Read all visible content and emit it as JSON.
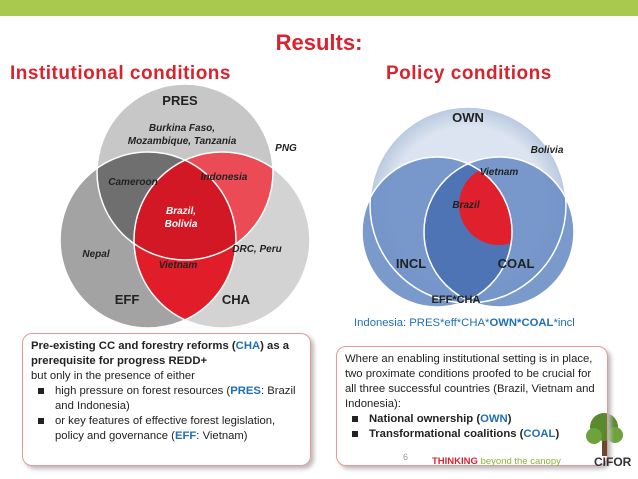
{
  "header": {
    "title": "Results:",
    "left_heading": "Institutional conditions",
    "right_heading": "Policy conditions"
  },
  "left_venn": {
    "pres": "PRES",
    "eff": "EFF",
    "cha": "CHA",
    "pres_only": [
      "Burkina Faso,",
      "Mozambique, Tanzania"
    ],
    "png": "PNG",
    "pres_eff": "Cameroon",
    "pres_cha": "Indonesia",
    "center": [
      "Brazil,",
      "Bolivia"
    ],
    "eff_only": "Nepal",
    "cha_only": "DRC, Peru",
    "eff_cha": "Vietnam"
  },
  "right_venn": {
    "own": "OWN",
    "incl": "INCL",
    "coal": "COAL",
    "outside": "EFF*CHA",
    "bolivia": "Bolivia",
    "vietnam": "Vietnam",
    "center": "Brazil"
  },
  "formula": [
    "Indonesia: PRES*eff*CHA*",
    "OWN*COAL",
    "*incl"
  ],
  "left_box": {
    "lead": [
      "Pre-existing CC and forestry reforms (",
      "CHA",
      ") as a prerequisite for progress REDD+"
    ],
    "sub": "but only in the presence of either",
    "bullets": [
      [
        "high pressure on forest resources (",
        "PRES",
        ": Brazil and Indonesia)"
      ],
      [
        "or key features of effective forest legislation, policy and governance (",
        "EFF",
        ": Vietnam)"
      ]
    ]
  },
  "right_box": {
    "lead": "Where an enabling institutional setting is in place, two proximate conditions proofed to be crucial for all three successful countries (Brazil, Vietnam and Indonesia):",
    "bullets": [
      [
        "National ownership (",
        "OWN",
        ")"
      ],
      [
        "Transformational coalitions (",
        "COAL",
        ")"
      ]
    ]
  },
  "footer": {
    "page": "6",
    "thinking": "THINKING",
    "tagline": "beyond the canopy",
    "logo": "CIFOR"
  }
}
